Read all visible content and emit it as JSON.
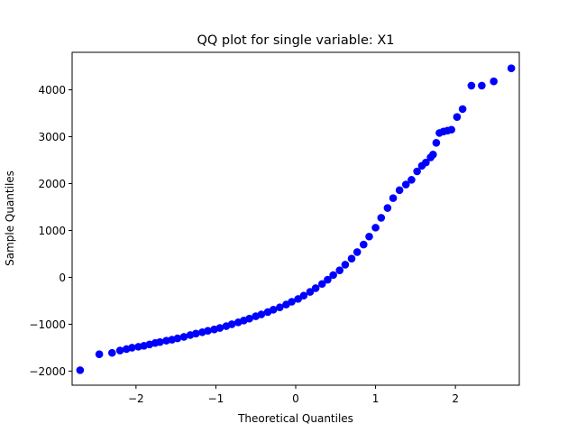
{
  "chart_data": {
    "type": "scatter",
    "title": "QQ plot for single variable: X1",
    "xlabel": "Theoretical Quantiles",
    "ylabel": "Sample Quantiles",
    "xlim": [
      -2.8,
      2.8
    ],
    "ylim": [
      -2300,
      4800
    ],
    "xticks": [
      -2,
      -1,
      0,
      1,
      2
    ],
    "xtick_labels": [
      "−2",
      "−1",
      "0",
      "1",
      "2"
    ],
    "yticks": [
      -2000,
      -1000,
      0,
      1000,
      2000,
      3000,
      4000
    ],
    "ytick_labels": [
      "−2000",
      "−1000",
      "0",
      "1000",
      "2000",
      "3000",
      "4000"
    ],
    "grid": false,
    "marker_color": "#0000ff",
    "series": [
      {
        "points": [
          [
            -2.7,
            -1980
          ],
          [
            -2.46,
            -1640
          ],
          [
            -2.3,
            -1610
          ],
          [
            -2.2,
            -1560
          ],
          [
            -2.12,
            -1530
          ],
          [
            -2.05,
            -1500
          ],
          [
            -1.97,
            -1480
          ],
          [
            -1.9,
            -1460
          ],
          [
            -1.83,
            -1430
          ],
          [
            -1.76,
            -1400
          ],
          [
            -1.7,
            -1380
          ],
          [
            -1.62,
            -1350
          ],
          [
            -1.55,
            -1330
          ],
          [
            -1.48,
            -1300
          ],
          [
            -1.4,
            -1270
          ],
          [
            -1.32,
            -1230
          ],
          [
            -1.25,
            -1200
          ],
          [
            -1.17,
            -1170
          ],
          [
            -1.1,
            -1140
          ],
          [
            -1.02,
            -1110
          ],
          [
            -0.95,
            -1080
          ],
          [
            -0.87,
            -1040
          ],
          [
            -0.8,
            -1000
          ],
          [
            -0.72,
            -960
          ],
          [
            -0.65,
            -920
          ],
          [
            -0.58,
            -880
          ],
          [
            -0.5,
            -830
          ],
          [
            -0.43,
            -790
          ],
          [
            -0.35,
            -740
          ],
          [
            -0.28,
            -690
          ],
          [
            -0.2,
            -640
          ],
          [
            -0.12,
            -580
          ],
          [
            -0.05,
            -520
          ],
          [
            0.03,
            -460
          ],
          [
            0.1,
            -390
          ],
          [
            0.18,
            -310
          ],
          [
            0.25,
            -230
          ],
          [
            0.33,
            -140
          ],
          [
            0.4,
            -50
          ],
          [
            0.47,
            50
          ],
          [
            0.55,
            150
          ],
          [
            0.62,
            270
          ],
          [
            0.7,
            400
          ],
          [
            0.77,
            540
          ],
          [
            0.85,
            700
          ],
          [
            0.92,
            870
          ],
          [
            1.0,
            1060
          ],
          [
            1.07,
            1270
          ],
          [
            1.15,
            1480
          ],
          [
            1.22,
            1690
          ],
          [
            1.3,
            1860
          ],
          [
            1.38,
            1980
          ],
          [
            1.45,
            2080
          ],
          [
            1.52,
            2260
          ],
          [
            1.58,
            2380
          ],
          [
            1.63,
            2450
          ],
          [
            1.69,
            2560
          ],
          [
            1.72,
            2620
          ],
          [
            1.76,
            2870
          ],
          [
            1.8,
            3080
          ],
          [
            1.85,
            3110
          ],
          [
            1.9,
            3130
          ],
          [
            1.95,
            3150
          ],
          [
            2.02,
            3420
          ],
          [
            2.09,
            3590
          ],
          [
            2.2,
            4090
          ],
          [
            2.33,
            4090
          ],
          [
            2.48,
            4180
          ],
          [
            2.7,
            4460
          ]
        ]
      }
    ]
  }
}
